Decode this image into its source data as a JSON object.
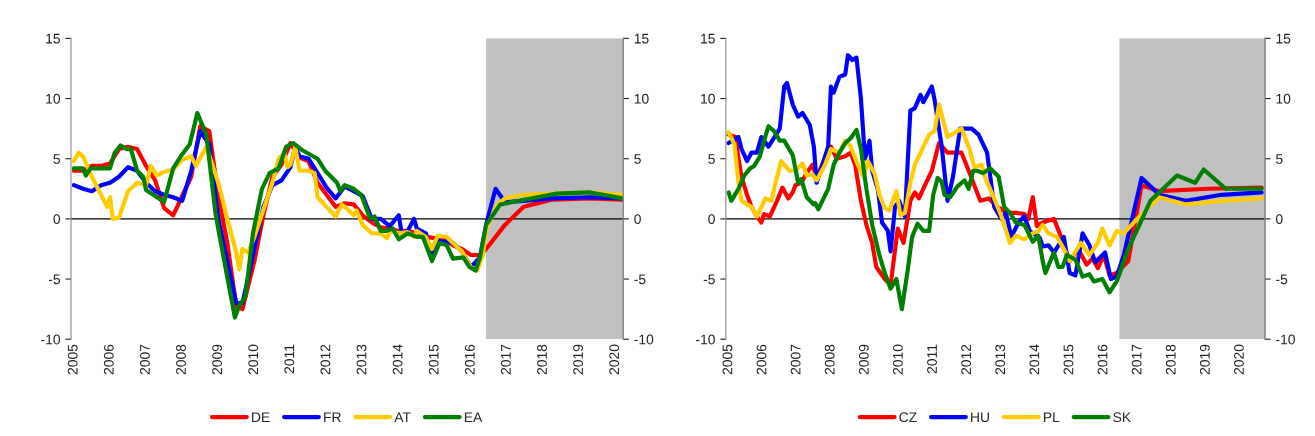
{
  "chart_data": [
    {
      "type": "line",
      "xlim": [
        2004.92,
        2020.22
      ],
      "xticks": [
        2005,
        2006,
        2007,
        2008,
        2009,
        2010,
        2011,
        2012,
        2013,
        2014,
        2015,
        2016,
        2017,
        2018,
        2019,
        2020
      ],
      "ylim": [
        -10,
        15
      ],
      "yticks": [
        -10,
        -5,
        0,
        5,
        10,
        15
      ],
      "y2lim": [
        -10,
        15
      ],
      "y2ticks": [
        -10,
        -5,
        0,
        5,
        10,
        15
      ],
      "grid": false,
      "legend": "bottom",
      "marker": "none",
      "line_style": "solid",
      "ref_lines": [
        {
          "axis": "y",
          "value": 0,
          "color": "#000000"
        }
      ],
      "bands": [
        {
          "axis": "x",
          "from": 2016.42,
          "to": 2020.22,
          "color": "#c0c0c0"
        }
      ],
      "series": [
        {
          "name": "DE",
          "color": "#ff0000",
          "x": [
            2005,
            2005.25,
            2005.5,
            2005.75,
            2006,
            2006.25,
            2006.5,
            2006.75,
            2007,
            2007.25,
            2007.5,
            2007.75,
            2008,
            2008.25,
            2008.5,
            2008.75,
            2009,
            2009.25,
            2009.5,
            2009.67,
            2010,
            2010.25,
            2010.5,
            2010.75,
            2011,
            2011.25,
            2011.5,
            2011.75,
            2012,
            2012.25,
            2012.5,
            2012.75,
            2013,
            2013.25,
            2013.5,
            2013.75,
            2014,
            2014.25,
            2014.5,
            2014.75,
            2015,
            2015.25,
            2015.5,
            2015.75,
            2016,
            2016.25,
            2016.42,
            2016.94,
            2017.46,
            2018.24,
            2019.28,
            2020.2
          ],
          "values": [
            4.0,
            4.0,
            4.4,
            4.4,
            4.6,
            5.8,
            6.0,
            5.8,
            4.4,
            3.2,
            0.9,
            0.3,
            1.9,
            3.5,
            7.7,
            7.3,
            1.9,
            -2.0,
            -7.3,
            -7.5,
            -3.5,
            0.3,
            3.5,
            4.5,
            6.3,
            5.1,
            4.8,
            3.0,
            2.0,
            1.0,
            1.3,
            1.2,
            0.3,
            -0.3,
            -0.7,
            -0.8,
            -1.0,
            -1.0,
            -1.2,
            -1.5,
            -1.6,
            -1.6,
            -2.2,
            -2.5,
            -3.0,
            -3.0,
            -2.5,
            -0.5,
            1.0,
            1.6,
            1.7,
            1.6
          ]
        },
        {
          "name": "FR",
          "color": "#0000ff",
          "x": [
            2005,
            2005.25,
            2005.5,
            2005.75,
            2006,
            2006.25,
            2006.5,
            2006.75,
            2007,
            2007.25,
            2007.5,
            2007.75,
            2008,
            2008.25,
            2008.5,
            2008.75,
            2009,
            2009.25,
            2009.5,
            2009.67,
            2010,
            2010.25,
            2010.5,
            2010.75,
            2011,
            2011.13,
            2011.25,
            2011.5,
            2011.75,
            2012,
            2012.25,
            2012.5,
            2012.75,
            2013,
            2013.25,
            2013.5,
            2013.75,
            2014,
            2014.08,
            2014.25,
            2014.42,
            2014.5,
            2014.75,
            2014.92,
            2015.08,
            2015.5,
            2015.75,
            2016,
            2016.25,
            2016.42,
            2016.68,
            2016.94,
            2017.46,
            2018.24,
            2019.28,
            2020.2
          ],
          "values": [
            2.8,
            2.5,
            2.3,
            2.8,
            3.0,
            3.5,
            4.3,
            4.0,
            3.0,
            2.3,
            2.0,
            1.8,
            1.5,
            4.0,
            7.3,
            6.2,
            0,
            -3.5,
            -7.0,
            -7.0,
            -2.5,
            1.0,
            2.8,
            3.2,
            4.3,
            6.0,
            5.2,
            5.0,
            3.8,
            2.6,
            1.7,
            2.7,
            2.3,
            1.9,
            0,
            0,
            -0.6,
            0.3,
            -1.2,
            -1.0,
            0,
            -0.8,
            -1.2,
            -3.3,
            -1.8,
            -2.0,
            -2.7,
            -4.0,
            -3.2,
            -0.5,
            2.5,
            1.4,
            1.5,
            1.7,
            1.8,
            1.7
          ]
        },
        {
          "name": "AT",
          "color": "#ffcc00",
          "x": [
            2005,
            2005.13,
            2005.25,
            2005.5,
            2005.75,
            2005.92,
            2006,
            2006.08,
            2006.25,
            2006.5,
            2006.75,
            2007,
            2007.13,
            2007.29,
            2007.5,
            2007.75,
            2008,
            2008.25,
            2008.38,
            2008.67,
            2008.75,
            2009,
            2009.25,
            2009.5,
            2009.58,
            2009.67,
            2009.83,
            2010,
            2010.17,
            2010.33,
            2010.5,
            2010.67,
            2010.83,
            2010.92,
            2011,
            2011.13,
            2011.25,
            2011.5,
            2011.67,
            2011.75,
            2012,
            2012.25,
            2012.42,
            2012.58,
            2012.75,
            2012.83,
            2013,
            2013.25,
            2013.5,
            2013.67,
            2013.75,
            2014,
            2014.25,
            2014.42,
            2014.5,
            2014.75,
            2014.92,
            2015.08,
            2015.33,
            2015.5,
            2015.75,
            2016,
            2016.17,
            2016.33,
            2016.42,
            2016.68,
            2016.94,
            2017.46,
            2018.24,
            2019.28,
            2020.2
          ],
          "values": [
            4.8,
            5.5,
            5.2,
            3.5,
            2.0,
            1.0,
            1.8,
            0,
            0.1,
            2.3,
            3.0,
            2.8,
            4.4,
            3.6,
            3.9,
            4.1,
            4.9,
            5.2,
            4.4,
            6.0,
            5.3,
            3.0,
            0,
            -2.8,
            -4.2,
            -2.5,
            -2.8,
            -1.5,
            0,
            1.5,
            3.0,
            5.0,
            5.5,
            4.3,
            4.5,
            6.0,
            4.0,
            4.0,
            3.8,
            1.8,
            1.0,
            0.2,
            1.2,
            0.8,
            0.3,
            0.7,
            -0.5,
            -1.2,
            -1.2,
            -1.6,
            -1.0,
            -1.2,
            -1.1,
            -1.5,
            -1.0,
            -1.5,
            -2.5,
            -1.4,
            -1.5,
            -2.0,
            -2.7,
            -4.0,
            -4.3,
            -3.0,
            -1.0,
            1.0,
            1.7,
            2.0,
            2.1,
            2.2,
            2.0
          ]
        },
        {
          "name": "EA",
          "color": "#008000",
          "x": [
            2005,
            2005.25,
            2005.33,
            2005.46,
            2005.75,
            2006,
            2006.13,
            2006.29,
            2006.46,
            2006.58,
            2006.75,
            2006.92,
            2007,
            2007.25,
            2007.5,
            2007.75,
            2007.96,
            2008.21,
            2008.42,
            2008.67,
            2008.92,
            2009.04,
            2009.29,
            2009.46,
            2009.58,
            2009.75,
            2009.96,
            2010.21,
            2010.42,
            2010.67,
            2010.88,
            2011.08,
            2011.33,
            2011.75,
            2011.96,
            2012.29,
            2012.38,
            2012.5,
            2012.75,
            2012.96,
            2013.21,
            2013.33,
            2013.5,
            2013.67,
            2013.83,
            2014,
            2014.25,
            2014.5,
            2014.67,
            2014.92,
            2015.13,
            2015.33,
            2015.5,
            2015.79,
            2015.96,
            2016.13,
            2016.25,
            2016.42,
            2016.81,
            2017.33,
            2018.37,
            2019.28,
            2020.2
          ],
          "values": [
            4.2,
            4.2,
            3.6,
            4.2,
            4.2,
            4.2,
            5.5,
            6.1,
            5.8,
            5.8,
            4.0,
            3.5,
            2.4,
            1.9,
            1.4,
            4.2,
            5.2,
            6.2,
            8.8,
            7.0,
            0.5,
            -1.5,
            -5.5,
            -8.2,
            -7.2,
            -6.5,
            -1.2,
            2.5,
            3.8,
            4.2,
            6.0,
            6.3,
            5.7,
            5.0,
            4.0,
            3.0,
            2.3,
            2.8,
            2.5,
            2.0,
            0,
            0.2,
            -1.0,
            -1.0,
            -0.8,
            -1.7,
            -1.2,
            -1.5,
            -1.5,
            -3.5,
            -2.0,
            -2.2,
            -3.3,
            -3.2,
            -4.0,
            -4.3,
            -3.2,
            -0.5,
            1.2,
            1.5,
            2.1,
            2.2,
            1.7
          ]
        }
      ]
    },
    {
      "type": "line",
      "xlim": [
        2004.92,
        2020.73
      ],
      "xticks": [
        2005,
        2006,
        2007,
        2008,
        2009,
        2010,
        2011,
        2012,
        2013,
        2014,
        2015,
        2016,
        2017,
        2018,
        2019,
        2020
      ],
      "ylim": [
        -10,
        15
      ],
      "yticks": [
        -10,
        -5,
        0,
        5,
        10,
        15
      ],
      "y2lim": [
        -10,
        15
      ],
      "y2ticks": [
        -10,
        -5,
        0,
        5,
        10,
        15
      ],
      "grid": false,
      "legend": "bottom",
      "marker": "none",
      "line_style": "solid",
      "ref_lines": [
        {
          "axis": "y",
          "value": 0,
          "color": "#000000"
        }
      ],
      "bands": [
        {
          "axis": "x",
          "from": 2016.46,
          "to": 2020.73,
          "color": "#c0c0c0"
        }
      ],
      "series": [
        {
          "name": "CZ",
          "color": "#ff0000",
          "x": [
            2005,
            2005.21,
            2005.29,
            2005.38,
            2005.54,
            2005.67,
            2005.83,
            2005.96,
            2006.04,
            2006.21,
            2006.42,
            2006.58,
            2006.75,
            2006.88,
            2006.96,
            2007.13,
            2007.29,
            2007.46,
            2007.58,
            2007.75,
            2008,
            2008.17,
            2008.42,
            2008.58,
            2008.71,
            2008.88,
            2009.04,
            2009.21,
            2009.33,
            2009.58,
            2009.75,
            2009.96,
            2010.13,
            2010.33,
            2010.46,
            2010.58,
            2010.79,
            2010.96,
            2011.17,
            2011.42,
            2011.83,
            2012.04,
            2012.38,
            2012.63,
            2012.88,
            2013.17,
            2013.42,
            2013.67,
            2013.79,
            2013.92,
            2014.04,
            2014.21,
            2014.54,
            2014.75,
            2015,
            2015.25,
            2015.5,
            2015.67,
            2015.83,
            2016,
            2016.17,
            2016.38,
            2016.72,
            2017.11,
            2017.63,
            2019.06,
            2020.63
          ],
          "values": [
            7.0,
            6.8,
            5.0,
            3.5,
            2.0,
            1.0,
            0.2,
            -0.3,
            0.4,
            0.2,
            1.5,
            2.6,
            1.7,
            2.2,
            2.8,
            3.0,
            3.8,
            4.5,
            3.5,
            4.5,
            6.0,
            5.0,
            5.2,
            5.5,
            4.5,
            1.5,
            -0.5,
            -2.0,
            -4.0,
            -5.0,
            -5.5,
            -0.8,
            -2.0,
            1.5,
            2.2,
            1.7,
            3.0,
            4.0,
            6.3,
            5.5,
            5.5,
            4.0,
            1.5,
            1.7,
            1.0,
            0.5,
            0.5,
            0.4,
            0,
            1.8,
            -0.6,
            -0.3,
            0,
            -1.5,
            -3.5,
            -2.5,
            -3.8,
            -3.3,
            -4.1,
            -3.0,
            -4.7,
            -4.5,
            -3.5,
            2.8,
            2.3,
            2.5,
            2.6
          ]
        },
        {
          "name": "HU",
          "color": "#0000ff",
          "x": [
            2005,
            2005.29,
            2005.38,
            2005.54,
            2005.67,
            2005.83,
            2005.96,
            2006.17,
            2006.5,
            2006.63,
            2006.71,
            2006.88,
            2007.04,
            2007.17,
            2007.38,
            2007.5,
            2007.58,
            2007.75,
            2007.92,
            2008,
            2008.08,
            2008.25,
            2008.42,
            2008.5,
            2008.63,
            2008.75,
            2008.88,
            2009,
            2009.13,
            2009.21,
            2009.38,
            2009.5,
            2009.67,
            2009.75,
            2009.88,
            2010,
            2010.17,
            2010.33,
            2010.46,
            2010.63,
            2010.71,
            2010.96,
            2011.04,
            2011.25,
            2011.42,
            2011.58,
            2011.79,
            2012.13,
            2012.33,
            2012.58,
            2012.79,
            2013,
            2013.13,
            2013.29,
            2013.5,
            2013.67,
            2013.83,
            2014.13,
            2014.21,
            2014.38,
            2014.54,
            2014.83,
            2015,
            2015.17,
            2015.38,
            2015.58,
            2015.75,
            2016.04,
            2016.21,
            2016.38,
            2016.59,
            2017.11,
            2017.63,
            2018.41,
            2019.45,
            2020.63
          ],
          "values": [
            6.3,
            6.8,
            5.8,
            4.8,
            5.5,
            5.5,
            6.8,
            6.0,
            7.5,
            11.0,
            11.3,
            9.5,
            8.5,
            8.8,
            7.8,
            6.0,
            3.0,
            4.5,
            6.0,
            11.0,
            10.5,
            11.8,
            12.0,
            13.6,
            13.2,
            13.4,
            10.0,
            5.0,
            6.5,
            4.0,
            2.4,
            -0.3,
            -1.0,
            -2.7,
            1.0,
            1.5,
            0.2,
            9.0,
            9.2,
            10.3,
            9.7,
            11.0,
            9.9,
            6.0,
            1.5,
            3.5,
            7.5,
            7.5,
            7.0,
            5.5,
            1.0,
            0,
            0.5,
            -1.5,
            -0.3,
            0.2,
            -1.0,
            -1.6,
            -2.3,
            -2.2,
            -2.8,
            -1.5,
            -4.5,
            -4.7,
            -1.2,
            -2.2,
            -3.6,
            -2.8,
            -5.0,
            -4.8,
            -3.0,
            3.4,
            2.0,
            1.5,
            2.0,
            2.2
          ]
        },
        {
          "name": "PL",
          "color": "#ffcc00",
          "x": [
            2005,
            2005.17,
            2005.29,
            2005.38,
            2005.54,
            2005.67,
            2005.83,
            2006,
            2006.08,
            2006.25,
            2006.38,
            2006.54,
            2006.63,
            2006.79,
            2006.96,
            2007.17,
            2007.29,
            2007.46,
            2007.58,
            2007.83,
            2008,
            2008.25,
            2008.42,
            2008.58,
            2008.79,
            2008.96,
            2009.08,
            2009.29,
            2009.42,
            2009.58,
            2009.71,
            2009.92,
            2010.04,
            2010.17,
            2010.33,
            2010.46,
            2010.63,
            2010.88,
            2011.04,
            2011.17,
            2011.42,
            2011.83,
            2012.04,
            2012.21,
            2012.42,
            2012.54,
            2012.79,
            2013,
            2013.25,
            2013.42,
            2013.67,
            2013.92,
            2014.08,
            2014.21,
            2014.38,
            2014.63,
            2014.83,
            2015,
            2015.33,
            2015.58,
            2015.83,
            2015.96,
            2016.17,
            2016.38,
            2016.59,
            2016.98,
            2017.63,
            2018.41,
            2019.45,
            2020.63
          ],
          "values": [
            7.2,
            6.2,
            3.0,
            1.5,
            1.2,
            1.0,
            0.2,
            1.2,
            1.7,
            1.5,
            3.0,
            4.8,
            4.5,
            4.0,
            4.0,
            4.6,
            3.6,
            3.7,
            3.2,
            4.5,
            5.8,
            5.5,
            6.5,
            6.0,
            4.5,
            3.5,
            4.8,
            3.7,
            2.0,
            0.9,
            0.7,
            2.3,
            0.3,
            0.5,
            3.0,
            4.5,
            5.5,
            7.0,
            7.3,
            9.5,
            6.8,
            7.5,
            6.0,
            4.3,
            4.5,
            3.3,
            1.7,
            0.2,
            -2.0,
            -1.4,
            -1.7,
            -1.2,
            -1.0,
            -0.5,
            -1.2,
            -1.5,
            -2.5,
            -3.5,
            -2.0,
            -3.0,
            -2.0,
            -0.8,
            -2.2,
            -1.0,
            -1.2,
            0,
            1.8,
            1.2,
            1.5,
            1.7
          ]
        },
        {
          "name": "SK",
          "color": "#008000",
          "x": [
            2005,
            2005.08,
            2005.29,
            2005.46,
            2005.63,
            2005.75,
            2005.92,
            2006.04,
            2006.17,
            2006.33,
            2006.5,
            2006.63,
            2006.88,
            2007.04,
            2007.13,
            2007.29,
            2007.5,
            2007.54,
            2007.63,
            2007.75,
            2007.92,
            2008.08,
            2008.25,
            2008.42,
            2008.58,
            2008.75,
            2008.88,
            2009.04,
            2009.21,
            2009.42,
            2009.58,
            2009.75,
            2009.92,
            2010.08,
            2010.25,
            2010.38,
            2010.54,
            2010.71,
            2010.88,
            2011,
            2011.13,
            2011.25,
            2011.33,
            2011.5,
            2011.71,
            2011.92,
            2012.04,
            2012.17,
            2012.29,
            2012.46,
            2012.67,
            2012.92,
            2013.08,
            2013.25,
            2013.42,
            2013.67,
            2013.92,
            2014.08,
            2014.21,
            2014.29,
            2014.54,
            2014.67,
            2014.79,
            2014.92,
            2015.17,
            2015.38,
            2015.58,
            2015.71,
            2015.96,
            2016.17,
            2016.38,
            2016.72,
            2017.37,
            2018.15,
            2018.68,
            2018.93,
            2019.58,
            2020.63
          ],
          "values": [
            2.2,
            1.5,
            2.5,
            3.6,
            4.2,
            4.4,
            5.2,
            6.5,
            7.7,
            7.3,
            6.5,
            6.5,
            5.3,
            3.0,
            3.3,
            1.8,
            1.2,
            1.3,
            0.8,
            1.5,
            2.5,
            4.5,
            5.5,
            6.3,
            6.7,
            7.4,
            5.8,
            2.5,
            -0.5,
            -3.0,
            -4.5,
            -5.8,
            -5.0,
            -7.5,
            -4.3,
            -1.5,
            -0.4,
            -1.0,
            -1.0,
            2.0,
            3.4,
            3.1,
            2.0,
            1.8,
            2.7,
            3.2,
            2.5,
            4.0,
            4.0,
            3.8,
            4.2,
            3.5,
            1.0,
            0.5,
            -0.3,
            -0.5,
            -1.9,
            -1.4,
            -3.5,
            -4.5,
            -2.8,
            -4.0,
            -4.0,
            -3.0,
            -3.4,
            -4.8,
            -4.6,
            -5.2,
            -5.0,
            -6.1,
            -5.2,
            -2.5,
            1.5,
            3.6,
            3.0,
            4.1,
            2.5,
            2.5
          ]
        }
      ]
    }
  ]
}
